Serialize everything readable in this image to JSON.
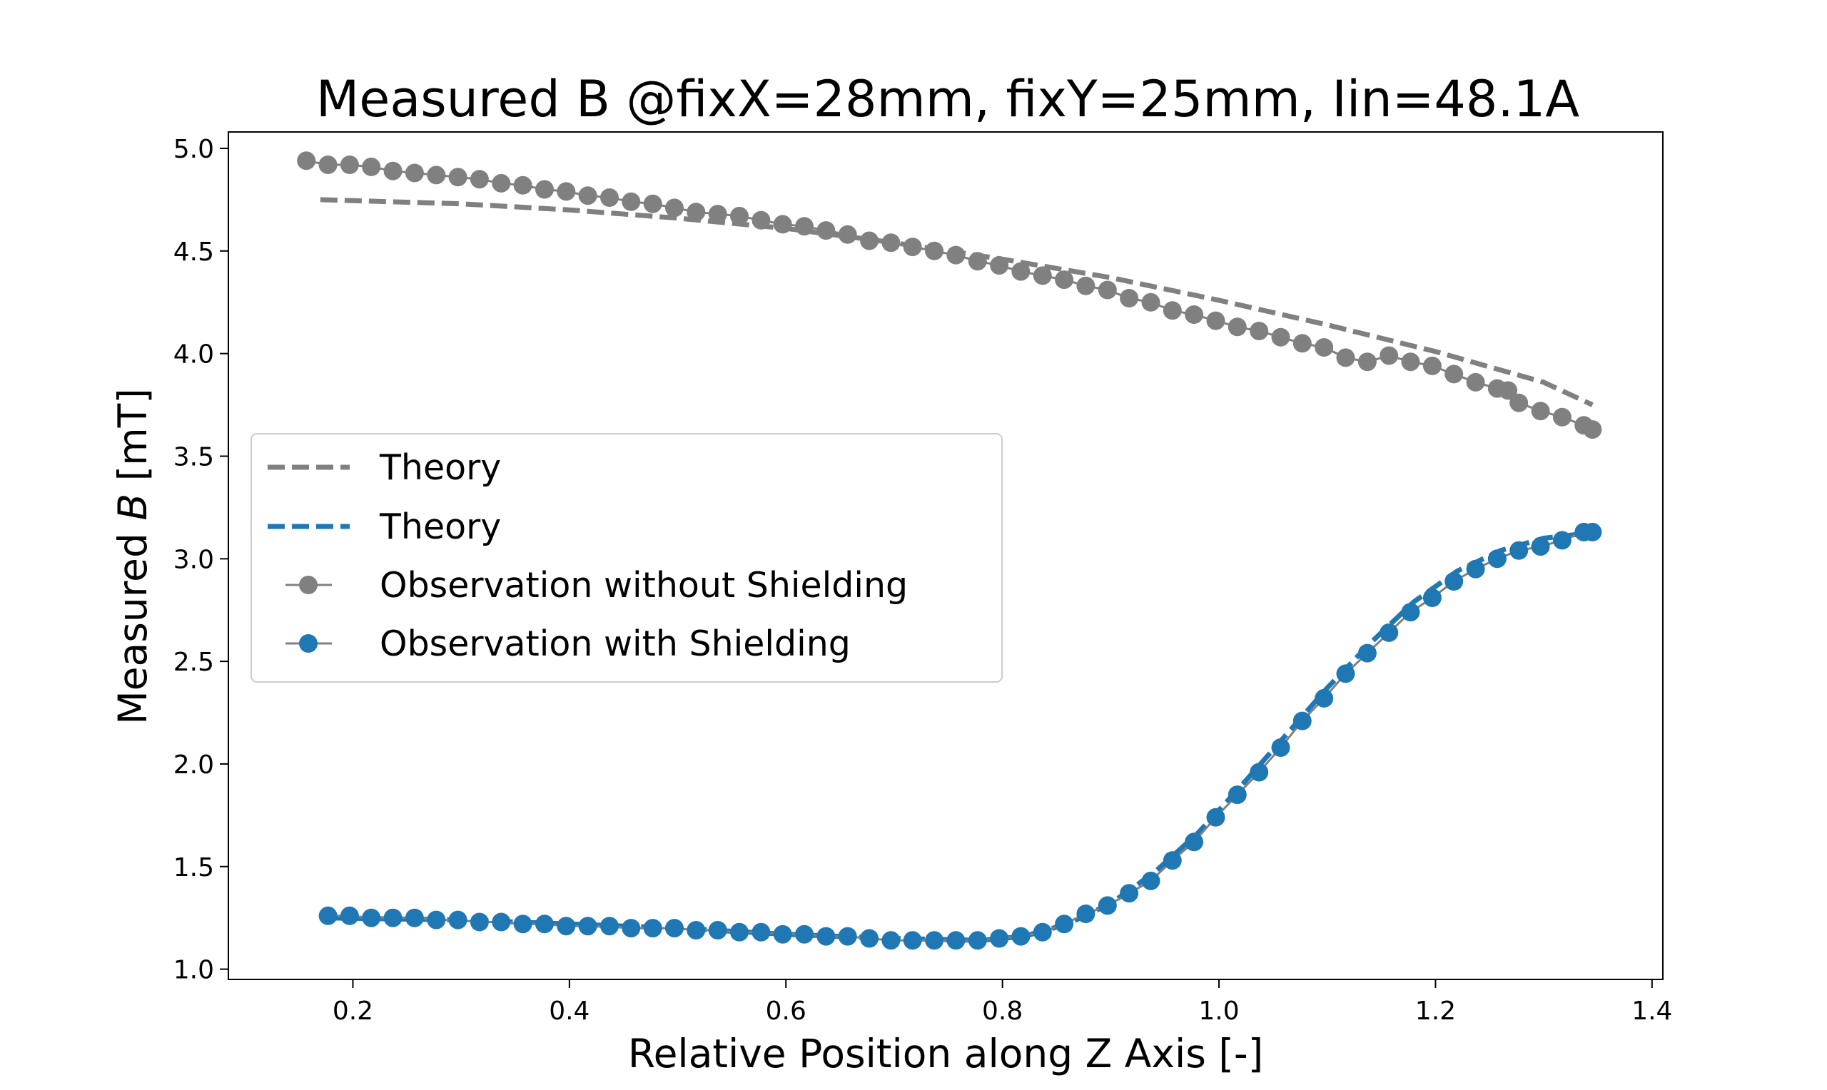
{
  "chart_data": {
    "type": "line",
    "title": "Measured B @fixX=28mm, fixY=25mm, Iin=48.1A",
    "xlabel": "Relative Position along Z Axis [-]",
    "ylabel_prefix": "Measured ",
    "ylabel_symbol": "B",
    "ylabel_suffix": " [mT]",
    "xlim": [
      0.085,
      1.41
    ],
    "ylim": [
      0.95,
      5.08
    ],
    "xticks": [
      "0.2",
      "0.4",
      "0.6",
      "0.8",
      "1.0",
      "1.2",
      "1.4"
    ],
    "yticks": [
      "1.0",
      "1.5",
      "2.0",
      "2.5",
      "3.0",
      "3.5",
      "4.0",
      "4.5",
      "5.0"
    ],
    "legend_position": "center-left",
    "series": [
      {
        "name": "Theory",
        "style": "dashed",
        "color": "#808080",
        "x": [
          0.17,
          0.3,
          0.4,
          0.5,
          0.6,
          0.7,
          0.8,
          0.9,
          1.0,
          1.1,
          1.2,
          1.3,
          1.345
        ],
        "y": [
          4.75,
          4.73,
          4.7,
          4.66,
          4.61,
          4.54,
          4.46,
          4.37,
          4.26,
          4.14,
          4.01,
          3.86,
          3.75
        ]
      },
      {
        "name": "Theory",
        "style": "dashed",
        "color": "#1f77b4",
        "x": [
          0.175,
          0.3,
          0.4,
          0.5,
          0.6,
          0.7,
          0.78,
          0.82,
          0.86,
          0.9,
          0.94,
          0.98,
          1.02,
          1.06,
          1.1,
          1.14,
          1.18,
          1.22,
          1.26,
          1.3,
          1.35
        ],
        "y": [
          1.25,
          1.24,
          1.22,
          1.2,
          1.17,
          1.15,
          1.14,
          1.16,
          1.22,
          1.32,
          1.47,
          1.66,
          1.89,
          2.13,
          2.37,
          2.59,
          2.79,
          2.94,
          3.04,
          3.1,
          3.13
        ]
      },
      {
        "name": "Observation without Shielding",
        "style": "markers",
        "color": "#808080",
        "x": [
          0.157,
          0.177,
          0.197,
          0.217,
          0.237,
          0.257,
          0.277,
          0.297,
          0.317,
          0.337,
          0.357,
          0.377,
          0.397,
          0.417,
          0.437,
          0.457,
          0.477,
          0.497,
          0.517,
          0.537,
          0.557,
          0.577,
          0.597,
          0.617,
          0.637,
          0.657,
          0.677,
          0.697,
          0.717,
          0.737,
          0.757,
          0.777,
          0.797,
          0.817,
          0.837,
          0.857,
          0.877,
          0.897,
          0.917,
          0.937,
          0.957,
          0.977,
          0.997,
          1.017,
          1.037,
          1.057,
          1.077,
          1.097,
          1.117,
          1.137,
          1.157,
          1.177,
          1.197,
          1.217,
          1.237,
          1.257,
          1.267,
          1.277,
          1.297,
          1.317,
          1.337,
          1.345
        ],
        "y": [
          4.94,
          4.92,
          4.92,
          4.91,
          4.89,
          4.88,
          4.87,
          4.86,
          4.85,
          4.83,
          4.82,
          4.8,
          4.79,
          4.77,
          4.76,
          4.74,
          4.73,
          4.71,
          4.69,
          4.68,
          4.67,
          4.65,
          4.63,
          4.62,
          4.6,
          4.58,
          4.55,
          4.54,
          4.52,
          4.5,
          4.48,
          4.45,
          4.43,
          4.4,
          4.38,
          4.36,
          4.33,
          4.31,
          4.27,
          4.25,
          4.21,
          4.19,
          4.16,
          4.13,
          4.11,
          4.08,
          4.05,
          4.03,
          3.98,
          3.96,
          3.99,
          3.96,
          3.94,
          3.9,
          3.86,
          3.83,
          3.82,
          3.76,
          3.72,
          3.69,
          3.65,
          3.63
        ]
      },
      {
        "name": "Observation with Shielding",
        "style": "markers",
        "color": "#1f77b4",
        "x": [
          0.177,
          0.197,
          0.217,
          0.237,
          0.257,
          0.277,
          0.297,
          0.317,
          0.337,
          0.357,
          0.377,
          0.397,
          0.417,
          0.437,
          0.457,
          0.477,
          0.497,
          0.517,
          0.537,
          0.557,
          0.577,
          0.597,
          0.617,
          0.637,
          0.657,
          0.677,
          0.697,
          0.717,
          0.737,
          0.757,
          0.777,
          0.797,
          0.817,
          0.837,
          0.857,
          0.877,
          0.897,
          0.917,
          0.937,
          0.957,
          0.977,
          0.997,
          1.017,
          1.037,
          1.057,
          1.077,
          1.097,
          1.117,
          1.137,
          1.157,
          1.177,
          1.197,
          1.217,
          1.237,
          1.257,
          1.277,
          1.297,
          1.317,
          1.337,
          1.345
        ],
        "y": [
          1.26,
          1.26,
          1.25,
          1.25,
          1.25,
          1.24,
          1.24,
          1.23,
          1.23,
          1.22,
          1.22,
          1.21,
          1.21,
          1.21,
          1.2,
          1.2,
          1.2,
          1.19,
          1.19,
          1.18,
          1.18,
          1.17,
          1.17,
          1.16,
          1.16,
          1.15,
          1.14,
          1.14,
          1.14,
          1.14,
          1.14,
          1.15,
          1.16,
          1.18,
          1.22,
          1.27,
          1.31,
          1.37,
          1.43,
          1.53,
          1.62,
          1.74,
          1.85,
          1.96,
          2.08,
          2.21,
          2.32,
          2.44,
          2.54,
          2.64,
          2.74,
          2.81,
          2.89,
          2.95,
          3.0,
          3.04,
          3.06,
          3.09,
          3.13,
          3.13
        ]
      }
    ]
  }
}
